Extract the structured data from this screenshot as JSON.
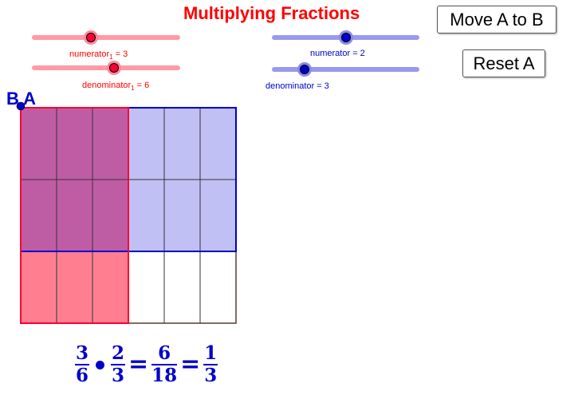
{
  "title": "Multiplying Fractions",
  "colors": {
    "title": "#ff0000",
    "red_label": "#ff0000",
    "red_track": "#ff9aa6",
    "red_knob": "#ff0033",
    "red_halo": "#ff8a99",
    "blue_label": "#0000cc",
    "blue_track": "#9999ee",
    "blue_knob": "#0000cc",
    "blue_halo": "#8a8aee",
    "red_fill": "#ff7f91",
    "red_stroke": "#ff0033",
    "blue_fill": "#c0c0f4",
    "blue_stroke": "#0000cc",
    "overlap_fill": "#bf5da4",
    "grid_line": "#333333",
    "point": "#0000cc",
    "point_label": "#0000cc",
    "equation": "#0000cc"
  },
  "sliders": {
    "numerator1": {
      "label": "numerator",
      "subscript": "1",
      "suffix": " = 3",
      "value": 3,
      "min": 1,
      "max": 6,
      "color": "red"
    },
    "denominator1": {
      "label": "denominator",
      "subscript": "1",
      "suffix": " = 6",
      "value": 6,
      "min": 1,
      "max": 10,
      "color": "red"
    },
    "numerator2": {
      "label": "numerator = 2",
      "value": 2,
      "min": 1,
      "max": 3,
      "color": "blue"
    },
    "denominator2": {
      "label": "denominator = 3",
      "value": 3,
      "min": 1,
      "max": 10,
      "color": "blue"
    }
  },
  "buttons": {
    "move": "Move A to B",
    "reset": "Reset A"
  },
  "point_label": "B A",
  "equation": {
    "f1": {
      "num": "3",
      "den": "6"
    },
    "f2": {
      "num": "2",
      "den": "3"
    },
    "f3": {
      "num": "6",
      "den": "18"
    },
    "f4": {
      "num": "1",
      "den": "3"
    },
    "equals": "="
  },
  "model": {
    "columns": 6,
    "rows": 3,
    "red_columns": 3,
    "blue_rows": 2
  }
}
